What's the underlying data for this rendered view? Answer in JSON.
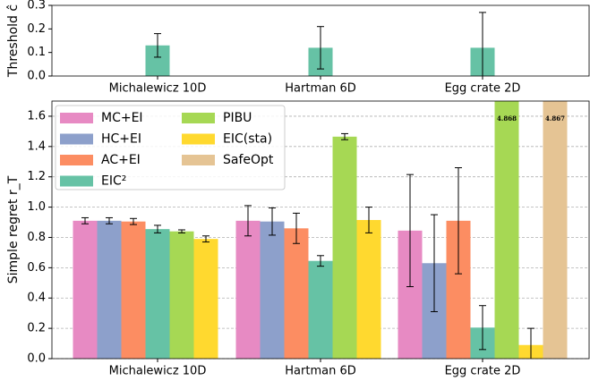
{
  "chart_data": [
    {
      "type": "bar",
      "ylabel": "Threshold ĉ",
      "categories": [
        "Michalewicz 10D",
        "Hartman 6D",
        "Egg crate 2D"
      ],
      "values": [
        0.13,
        0.12,
        0.12
      ],
      "errors": [
        0.05,
        0.09,
        0.15
      ],
      "color": "#66c2a5",
      "ylim": [
        0,
        0.3
      ],
      "yticks": [
        {
          "value": 0,
          "label": "0.0"
        },
        0.1,
        0.2,
        0.3
      ],
      "grid": false
    },
    {
      "type": "grouped_bar",
      "ylabel": "Simple regret r_T",
      "categories": [
        "Michalewicz 10D",
        "Hartman 6D",
        "Egg crate 2D"
      ],
      "series": [
        {
          "name": "MC+EI",
          "color": "#e78ac3",
          "values": [
            0.91,
            0.91,
            0.845
          ],
          "errors": [
            0.02,
            0.1,
            0.37
          ]
        },
        {
          "name": "HC+EI",
          "color": "#8da0cb",
          "values": [
            0.91,
            0.905,
            0.63
          ],
          "errors": [
            0.02,
            0.09,
            0.32
          ]
        },
        {
          "name": "AC+EI",
          "color": "#fc8d62",
          "values": [
            0.905,
            0.86,
            0.91
          ],
          "errors": [
            0.02,
            0.1,
            0.35
          ]
        },
        {
          "name": "EIC²",
          "color": "#66c2a5",
          "values": [
            0.855,
            0.645,
            0.205
          ],
          "errors": [
            0.025,
            0.035,
            0.145
          ]
        },
        {
          "name": "PIBU",
          "color": "#a6d854",
          "values": [
            0.84,
            1.465,
            4.868
          ],
          "errors": [
            0.01,
            0.02,
            null
          ],
          "value_labels": [
            null,
            null,
            "4.868"
          ]
        },
        {
          "name": "EIC(sta)",
          "color": "#ffd92f",
          "values": [
            0.79,
            0.915,
            0.09
          ],
          "errors": [
            0.02,
            0.085,
            0.11
          ]
        },
        {
          "name": "SafeOpt",
          "color": "#e5c494",
          "values": [
            null,
            null,
            4.867
          ],
          "errors": [
            null,
            null,
            null
          ],
          "value_labels": [
            null,
            null,
            "4.867"
          ]
        }
      ],
      "ylim": [
        0,
        1.7
      ],
      "yticks": [
        {
          "value": 0,
          "label": "0.0"
        },
        0.2,
        0.4,
        0.6,
        0.8,
        {
          "value": 1,
          "label": "1.0"
        },
        1.2,
        1.4,
        1.6
      ],
      "grid": true,
      "legend": "upper left",
      "legend_columns": 2
    }
  ]
}
